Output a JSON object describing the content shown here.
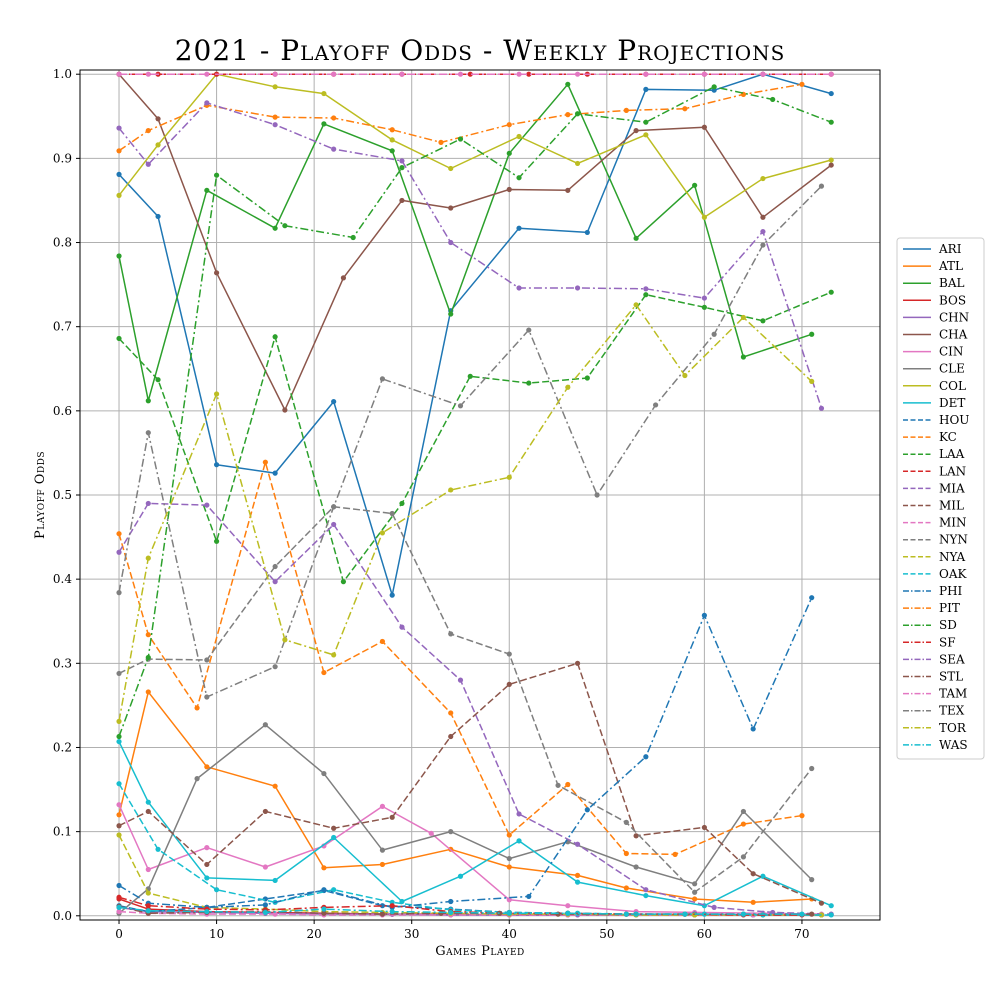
{
  "chart_data": {
    "type": "line",
    "title": "2021 - Playoff Odds - Weekly Projections",
    "xlabel": "Games Played",
    "ylabel": "Playoff Odds",
    "xlim": [
      -4,
      78
    ],
    "ylim": [
      -0.005,
      1.005
    ],
    "xticks": [
      0,
      10,
      20,
      30,
      40,
      50,
      60,
      70
    ],
    "yticks": [
      0.0,
      0.1,
      0.2,
      0.3,
      0.4,
      0.5,
      0.6,
      0.7,
      0.8,
      0.9,
      1.0
    ],
    "grid": true,
    "legend": "right",
    "series": [
      {
        "name": "ARI",
        "color": "#1f77b4",
        "dash": "solid",
        "x": [
          0,
          4,
          10,
          16,
          22,
          28,
          34,
          41,
          48,
          54,
          61,
          66,
          73
        ],
        "y": [
          0.881,
          0.831,
          0.536,
          0.526,
          0.611,
          0.381,
          0.719,
          0.817,
          0.812,
          0.982,
          0.981,
          1.0,
          0.977
        ]
      },
      {
        "name": "ATL",
        "color": "#ff7f0e",
        "dash": "solid",
        "x": [
          0,
          3,
          9,
          16,
          21,
          27,
          34,
          40,
          47,
          52,
          59,
          65,
          71
        ],
        "y": [
          0.12,
          0.266,
          0.177,
          0.154,
          0.057,
          0.061,
          0.079,
          0.058,
          0.048,
          0.033,
          0.02,
          0.016,
          0.02
        ]
      },
      {
        "name": "BAL",
        "color": "#2ca02c",
        "dash": "solid",
        "x": [
          0,
          3,
          9,
          16,
          21,
          28,
          34,
          40,
          46,
          53,
          59,
          64,
          71
        ],
        "y": [
          0.784,
          0.612,
          0.862,
          0.817,
          0.941,
          0.909,
          0.715,
          0.906,
          0.988,
          0.805,
          0.868,
          0.664,
          0.691
        ]
      },
      {
        "name": "BOS",
        "color": "#d62728",
        "dash": "solid",
        "x": [
          0,
          3,
          9,
          15,
          21,
          28,
          34,
          40,
          46,
          53,
          59,
          65,
          72
        ],
        "y": [
          0.02,
          0.008,
          0.005,
          0.004,
          0.003,
          0.002,
          0.002,
          0.001,
          0.001,
          0.001,
          0.001,
          0.001,
          0.001
        ]
      },
      {
        "name": "CHN",
        "color": "#9467bd",
        "dash": "solid",
        "x": [
          0,
          3,
          9,
          15,
          21,
          28,
          34,
          40,
          47,
          53,
          59,
          65,
          72
        ],
        "y": [
          0.01,
          0.005,
          0.004,
          0.003,
          0.002,
          0.002,
          0.001,
          0.001,
          0.001,
          0.001,
          0.001,
          0.001,
          0.001
        ]
      },
      {
        "name": "CHA",
        "color": "#8c564b",
        "dash": "solid",
        "x": [
          0,
          4,
          10,
          17,
          23,
          29,
          34,
          40,
          46,
          53,
          60,
          66,
          73
        ],
        "y": [
          1.0,
          0.947,
          0.764,
          0.601,
          0.758,
          0.85,
          0.841,
          0.863,
          0.862,
          0.933,
          0.937,
          0.83,
          0.892
        ]
      },
      {
        "name": "CIN",
        "color": "#e377c2",
        "dash": "solid",
        "x": [
          0,
          3,
          9,
          15,
          21,
          27,
          32,
          40,
          46,
          53,
          59,
          66,
          72
        ],
        "y": [
          0.132,
          0.055,
          0.081,
          0.058,
          0.083,
          0.13,
          0.098,
          0.019,
          0.012,
          0.005,
          0.004,
          0.003,
          0.002
        ]
      },
      {
        "name": "CLE",
        "color": "#7f7f7f",
        "dash": "solid",
        "x": [
          0,
          3,
          8,
          15,
          21,
          27,
          34,
          40,
          46,
          53,
          59,
          64,
          71
        ],
        "y": [
          0.003,
          0.032,
          0.163,
          0.227,
          0.169,
          0.078,
          0.1,
          0.068,
          0.088,
          0.058,
          0.038,
          0.124,
          0.043
        ]
      },
      {
        "name": "COL",
        "color": "#bcbd22",
        "dash": "solid",
        "x": [
          0,
          4,
          10,
          16,
          21,
          28,
          34,
          41,
          47,
          54,
          60,
          66,
          73
        ],
        "y": [
          0.856,
          0.916,
          1.0,
          0.985,
          0.977,
          0.922,
          0.888,
          0.926,
          0.894,
          0.928,
          0.83,
          0.876,
          0.898
        ]
      },
      {
        "name": "DET",
        "color": "#17becf",
        "dash": "solid",
        "x": [
          0,
          3,
          9,
          16,
          22,
          29,
          35,
          41,
          47,
          54,
          60,
          66,
          73
        ],
        "y": [
          0.207,
          0.135,
          0.045,
          0.042,
          0.093,
          0.017,
          0.047,
          0.089,
          0.04,
          0.024,
          0.012,
          0.047,
          0.012
        ]
      },
      {
        "name": "HOU",
        "color": "#1f77b4",
        "dash": "dashed",
        "x": [
          0,
          3,
          9,
          15,
          21,
          27,
          34,
          40,
          46,
          53,
          59,
          65,
          72
        ],
        "y": [
          0.012,
          0.005,
          0.01,
          0.02,
          0.03,
          0.012,
          0.008,
          0.004,
          0.003,
          0.002,
          0.002,
          0.001,
          0.001
        ]
      },
      {
        "name": "KC",
        "color": "#ff7f0e",
        "dash": "dashed",
        "x": [
          0,
          3,
          8,
          15,
          21,
          27,
          34,
          40,
          46,
          52,
          57,
          64,
          70
        ],
        "y": [
          0.454,
          0.334,
          0.247,
          0.539,
          0.289,
          0.326,
          0.241,
          0.096,
          0.156,
          0.074,
          0.073,
          0.109,
          0.119
        ]
      },
      {
        "name": "LAA",
        "color": "#2ca02c",
        "dash": "dashed",
        "x": [
          0,
          4,
          10,
          16,
          23,
          29,
          36,
          42,
          48,
          54,
          60,
          66,
          73
        ],
        "y": [
          0.686,
          0.637,
          0.445,
          0.688,
          0.397,
          0.49,
          0.641,
          0.633,
          0.639,
          0.738,
          0.723,
          0.707,
          0.741
        ]
      },
      {
        "name": "LAN",
        "color": "#d62728",
        "dash": "dashed",
        "x": [
          0,
          4,
          10,
          16,
          22,
          29,
          36,
          42,
          48,
          54,
          60,
          66,
          73
        ],
        "y": [
          1.0,
          1.0,
          1.0,
          1.0,
          1.0,
          1.0,
          1.0,
          1.0,
          1.0,
          1.0,
          1.0,
          1.0,
          1.0
        ]
      },
      {
        "name": "MIA",
        "color": "#9467bd",
        "dash": "dashed",
        "x": [
          0,
          3,
          9,
          16,
          22,
          29,
          35,
          41,
          47,
          54,
          61,
          67,
          73
        ],
        "y": [
          0.432,
          0.49,
          0.488,
          0.397,
          0.465,
          0.343,
          0.28,
          0.121,
          0.085,
          0.031,
          0.01,
          0.004,
          0.002
        ]
      },
      {
        "name": "MIL",
        "color": "#8c564b",
        "dash": "dashed",
        "x": [
          0,
          3,
          9,
          15,
          22,
          28,
          34,
          40,
          47,
          53,
          60,
          65,
          72
        ],
        "y": [
          0.107,
          0.124,
          0.061,
          0.124,
          0.104,
          0.117,
          0.213,
          0.275,
          0.3,
          0.095,
          0.105,
          0.05,
          0.015
        ]
      },
      {
        "name": "MIN",
        "color": "#e377c2",
        "dash": "dashed",
        "x": [
          0,
          3,
          9,
          16,
          21,
          27,
          34,
          40,
          46,
          53,
          59,
          65,
          72
        ],
        "y": [
          0.005,
          0.003,
          0.002,
          0.002,
          0.001,
          0.001,
          0.001,
          0.001,
          0.001,
          0.001,
          0.001,
          0.001,
          0.001
        ]
      },
      {
        "name": "NYN",
        "color": "#7f7f7f",
        "dash": "dashed",
        "x": [
          0,
          3,
          9,
          16,
          22,
          28,
          34,
          40,
          45,
          52,
          59,
          64,
          71
        ],
        "y": [
          0.288,
          0.305,
          0.304,
          0.415,
          0.486,
          0.478,
          0.335,
          0.311,
          0.155,
          0.111,
          0.028,
          0.07,
          0.175
        ]
      },
      {
        "name": "NYA",
        "color": "#bcbd22",
        "dash": "dashed",
        "x": [
          0,
          3,
          9,
          15,
          21,
          27,
          34,
          40,
          46,
          53,
          59,
          66,
          72
        ],
        "y": [
          0.096,
          0.027,
          0.01,
          0.008,
          0.005,
          0.004,
          0.003,
          0.002,
          0.002,
          0.001,
          0.001,
          0.001,
          0.001
        ]
      },
      {
        "name": "OAK",
        "color": "#17becf",
        "dash": "dashed",
        "x": [
          0,
          4,
          10,
          16,
          22,
          28,
          34,
          40,
          47,
          53,
          60,
          66,
          73
        ],
        "y": [
          0.157,
          0.079,
          0.031,
          0.016,
          0.031,
          0.016,
          0.007,
          0.004,
          0.003,
          0.002,
          0.002,
          0.001,
          0.001
        ]
      },
      {
        "name": "PHI",
        "color": "#1f77b4",
        "dash": "dashdot",
        "x": [
          0,
          3,
          9,
          15,
          21,
          28,
          34,
          42,
          48,
          54,
          60,
          65,
          71
        ],
        "y": [
          0.036,
          0.015,
          0.01,
          0.013,
          0.031,
          0.01,
          0.017,
          0.023,
          0.126,
          0.189,
          0.357,
          0.222,
          0.378
        ]
      },
      {
        "name": "PIT",
        "color": "#ff7f0e",
        "dash": "dashdot",
        "x": [
          0,
          3,
          9,
          16,
          22,
          28,
          33,
          40,
          46,
          52,
          58,
          64,
          70
        ],
        "y": [
          0.909,
          0.933,
          0.963,
          0.949,
          0.948,
          0.934,
          0.919,
          0.94,
          0.952,
          0.957,
          0.959,
          0.976,
          0.988
        ]
      },
      {
        "name": "SD",
        "color": "#2ca02c",
        "dash": "dashdot",
        "x": [
          0,
          3,
          10,
          17,
          24,
          29,
          35,
          41,
          47,
          54,
          61,
          67,
          73
        ],
        "y": [
          0.213,
          0.307,
          0.88,
          0.82,
          0.806,
          0.889,
          0.923,
          0.877,
          0.953,
          0.943,
          0.985,
          0.97,
          0.943
        ]
      },
      {
        "name": "SF",
        "color": "#d62728",
        "dash": "dashdot",
        "x": [
          0,
          3,
          9,
          15,
          21,
          28,
          34,
          40,
          46,
          52,
          58,
          64,
          70
        ],
        "y": [
          0.022,
          0.012,
          0.008,
          0.007,
          0.01,
          0.012,
          0.005,
          0.003,
          0.003,
          0.002,
          0.002,
          0.001,
          0.001
        ]
      },
      {
        "name": "SEA",
        "color": "#9467bd",
        "dash": "dashdot",
        "x": [
          0,
          3,
          9,
          16,
          22,
          29,
          34,
          41,
          47,
          54,
          60,
          66,
          72
        ],
        "y": [
          0.936,
          0.893,
          0.966,
          0.94,
          0.911,
          0.897,
          0.8,
          0.746,
          0.746,
          0.745,
          0.734,
          0.813,
          0.603
        ]
      },
      {
        "name": "STL",
        "color": "#8c564b",
        "dash": "dashdot",
        "x": [
          0,
          3,
          9,
          15,
          21,
          27,
          33,
          39,
          45,
          52,
          58,
          64,
          71
        ],
        "y": [
          0.011,
          0.003,
          0.004,
          0.005,
          0.003,
          0.002,
          0.003,
          0.003,
          0.002,
          0.002,
          0.002,
          0.002,
          0.002
        ]
      },
      {
        "name": "TAM",
        "color": "#e377c2",
        "dash": "dashdot",
        "x": [
          0,
          3,
          9,
          16,
          22,
          29,
          35,
          41,
          47,
          54,
          60,
          66,
          73
        ],
        "y": [
          1.0,
          1.0,
          1.0,
          1.0,
          1.0,
          1.0,
          1.0,
          1.0,
          1.0,
          1.0,
          1.0,
          1.0,
          1.0
        ]
      },
      {
        "name": "TEX",
        "color": "#7f7f7f",
        "dash": "dashdot",
        "x": [
          0,
          3,
          9,
          16,
          22,
          27,
          35,
          42,
          49,
          55,
          61,
          66,
          72
        ],
        "y": [
          0.384,
          0.574,
          0.26,
          0.296,
          0.486,
          0.638,
          0.606,
          0.696,
          0.5,
          0.607,
          0.691,
          0.797,
          0.867
        ]
      },
      {
        "name": "TOR",
        "color": "#bcbd22",
        "dash": "dashdot",
        "x": [
          0,
          3,
          10,
          17,
          22,
          27,
          34,
          40,
          46,
          53,
          58,
          64,
          71
        ],
        "y": [
          0.231,
          0.425,
          0.62,
          0.328,
          0.31,
          0.455,
          0.506,
          0.521,
          0.628,
          0.726,
          0.642,
          0.711,
          0.635
        ]
      },
      {
        "name": "WAS",
        "color": "#17becf",
        "dash": "dashdot",
        "x": [
          0,
          3,
          9,
          15,
          21,
          28,
          34,
          40,
          46,
          52,
          58,
          64,
          70
        ],
        "y": [
          0.01,
          0.006,
          0.005,
          0.004,
          0.008,
          0.005,
          0.004,
          0.003,
          0.003,
          0.002,
          0.002,
          0.002,
          0.002
        ]
      }
    ]
  }
}
